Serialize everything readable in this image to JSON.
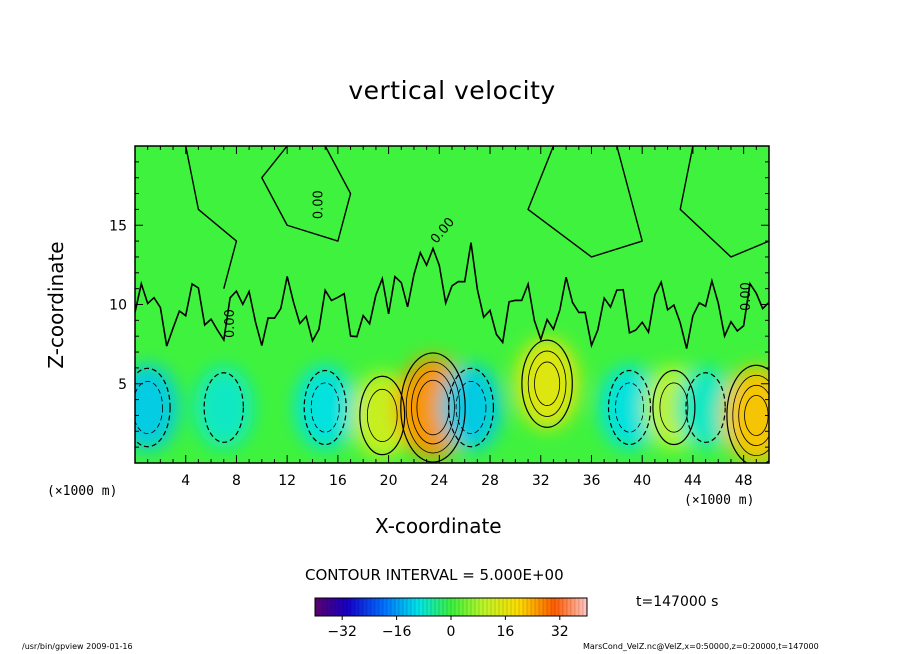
{
  "chart_data": {
    "type": "heatmap",
    "title": "vertical velocity",
    "xlabel": "X-coordinate",
    "ylabel": "Z-coordinate",
    "x_unit": "(×1000 m)",
    "y_unit": "(×1000 m)",
    "xlim": [
      0,
      50
    ],
    "ylim": [
      0,
      20
    ],
    "x_ticks": [
      4,
      8,
      12,
      16,
      20,
      24,
      28,
      32,
      36,
      40,
      44,
      48
    ],
    "y_ticks": [
      5,
      10,
      15
    ],
    "contour_interval_text": "CONTOUR INTERVAL = 5.000E+00",
    "zero_contour_labels": [
      "0.00",
      "0.00",
      "0.00",
      "0.00"
    ],
    "colorbar": {
      "min": -40,
      "max": 40,
      "ticks": [
        -32,
        -16,
        0,
        16,
        32
      ],
      "tick_labels": [
        "−32",
        "−16",
        "0",
        "16",
        "32"
      ]
    },
    "cells": [
      {
        "x": 1,
        "z": 3.5,
        "w": -12
      },
      {
        "x": 7,
        "z": 3.5,
        "w": -8
      },
      {
        "x": 15,
        "z": 3.5,
        "w": -10
      },
      {
        "x": 19.5,
        "z": 3,
        "w": 12
      },
      {
        "x": 23.5,
        "z": 3.5,
        "w": 26
      },
      {
        "x": 26.5,
        "z": 3.5,
        "w": -12
      },
      {
        "x": 32.5,
        "z": 5,
        "w": 16
      },
      {
        "x": 39,
        "z": 3.5,
        "w": -10
      },
      {
        "x": 42.5,
        "z": 3.5,
        "w": 10
      },
      {
        "x": 45,
        "z": 3.5,
        "w": -8
      },
      {
        "x": 49,
        "z": 3,
        "w": 22
      }
    ],
    "time_label": "t=147000 s",
    "footer_left": "/usr/bin/gpview   2009-01-16",
    "footer_right": "MarsCond_VelZ.nc@VelZ,x=0:50000,z=0:20000,t=147000"
  }
}
